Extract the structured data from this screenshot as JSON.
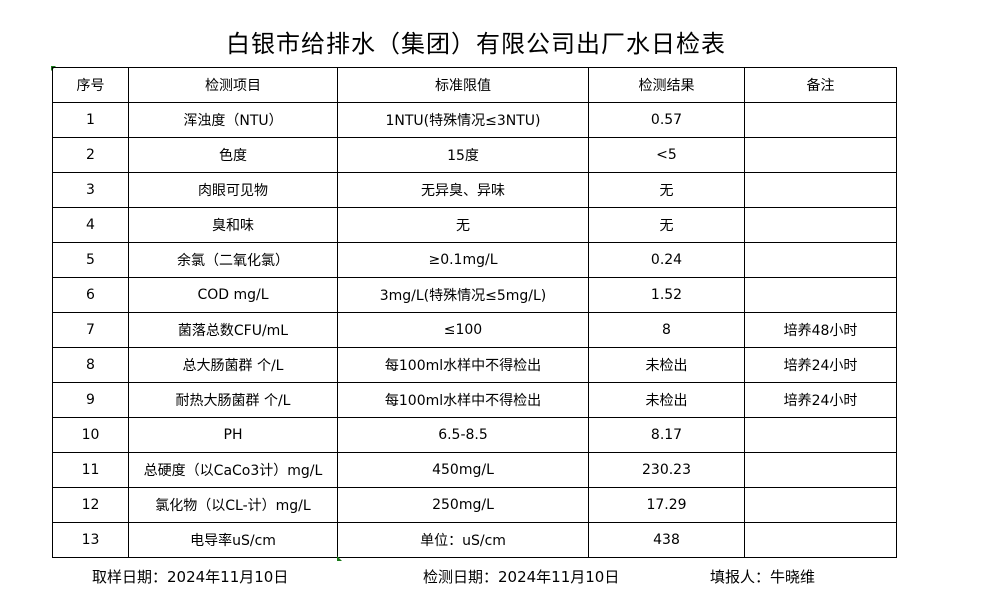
{
  "title": "白银市给排水（集团）有限公司出厂水日检表",
  "headers": [
    "序号",
    "检测项目",
    "标准限值",
    "检测结果",
    "备注"
  ],
  "rows": [
    [
      "1",
      "浑浊度（NTU）",
      "1NTU(特殊情况≤3NTU)",
      "0.57",
      ""
    ],
    [
      "2",
      "色度",
      "15度",
      "<5",
      ""
    ],
    [
      "3",
      "肉眼可见物",
      "无异臭、异味",
      "无",
      ""
    ],
    [
      "4",
      "臭和味",
      "无",
      "无",
      ""
    ],
    [
      "5",
      "余氯（二氧化氯）",
      "≥0.1mg/L",
      "0.24",
      ""
    ],
    [
      "6",
      "COD          mg/L",
      "3mg/L(特殊情况≤5mg/L)",
      "1.52",
      ""
    ],
    [
      "7",
      "菌落总数CFU/mL",
      "≤100",
      "8",
      "培养48小时"
    ],
    [
      "8",
      "总大肠菌群 个/L",
      "每100ml水样中不得检出",
      "未检出",
      "培养24小时"
    ],
    [
      "9",
      "耐热大肠菌群 个/L",
      "每100ml水样中不得检出",
      "未检出",
      "培养24小时"
    ],
    [
      "10",
      "PH",
      "6.5-8.5",
      "8.17",
      ""
    ],
    [
      "11",
      "总硬度（以CaCo3计）mg/L",
      "450mg/L",
      "230.23",
      ""
    ],
    [
      "12",
      "氯化物（以CL-计）mg/L",
      "250mg/L",
      "17.29",
      ""
    ],
    [
      "13",
      "电导率uS/cm",
      "单位：uS/cm",
      "438",
      ""
    ]
  ],
  "footer": {
    "sample_date": "取样日期：2024年11月10日",
    "test_date": "检测日期：2024年11月10日",
    "reporter": "填报人：牛晓维"
  }
}
